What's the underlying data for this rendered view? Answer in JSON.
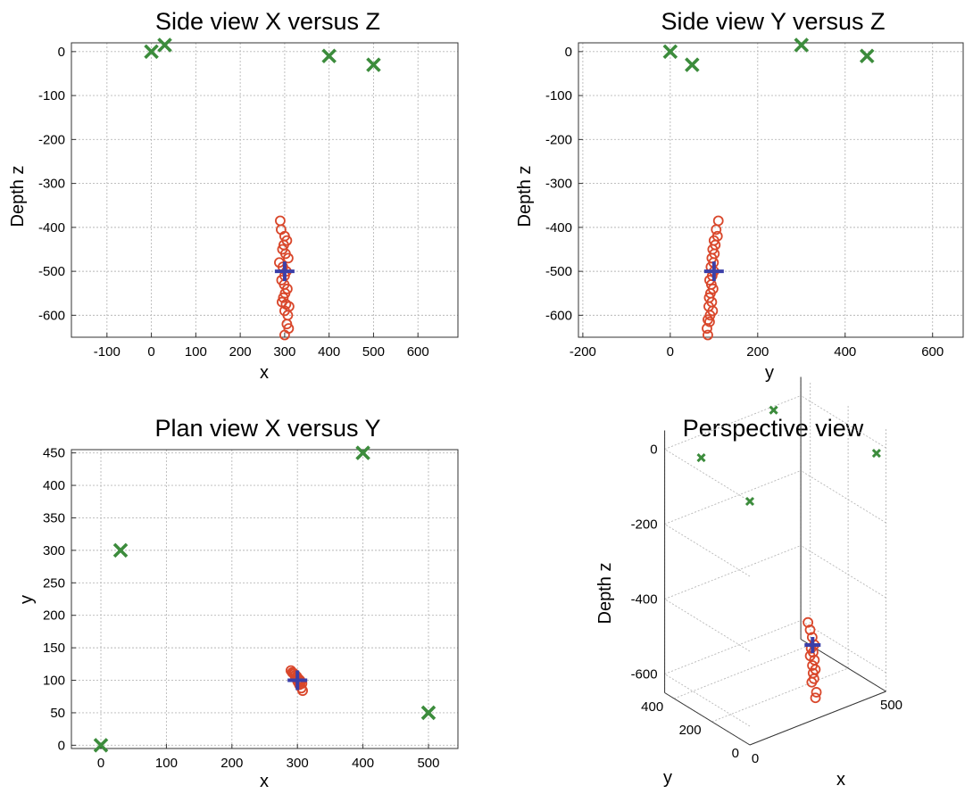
{
  "colors": {
    "sensor": "#3c8c3c",
    "event": "#d9472b",
    "centroid": "#3b3fa8"
  },
  "chart_data": [
    {
      "type": "scatter",
      "title": "Side view X versus Z",
      "xlabel": "x",
      "ylabel": "Depth z",
      "xlim": [
        -180,
        690
      ],
      "ylim": [
        -650,
        20
      ],
      "xticks": [
        -100,
        0,
        100,
        200,
        300,
        400,
        500,
        600
      ],
      "yticks": [
        0,
        -100,
        -200,
        -300,
        -400,
        -500,
        -600
      ],
      "grid": true,
      "series": [
        {
          "marker": "x",
          "color": "sensor",
          "x": [
            0,
            30,
            400,
            500
          ],
          "y": [
            0,
            15,
            -10,
            -30
          ]
        },
        {
          "marker": "o",
          "color": "event",
          "x": [
            290,
            292,
            300,
            305,
            298,
            295,
            302,
            308,
            288,
            296,
            304,
            300,
            293,
            299,
            306,
            301,
            297,
            303,
            310,
            294,
            300,
            307,
            305,
            309,
            300
          ],
          "y": [
            -385,
            -405,
            -420,
            -430,
            -440,
            -450,
            -460,
            -470,
            -480,
            -490,
            -500,
            -510,
            -520,
            -530,
            -540,
            -550,
            -560,
            -575,
            -580,
            -570,
            -590,
            -600,
            -620,
            -630,
            -645
          ]
        },
        {
          "marker": "+",
          "color": "centroid",
          "x": [
            300
          ],
          "y": [
            -500
          ]
        }
      ]
    },
    {
      "type": "scatter",
      "title": "Side view Y versus Z",
      "xlabel": "y",
      "ylabel": "Depth z",
      "xlim": [
        -210,
        670
      ],
      "ylim": [
        -650,
        20
      ],
      "xticks": [
        -200,
        0,
        200,
        400,
        600
      ],
      "yticks": [
        0,
        -100,
        -200,
        -300,
        -400,
        -500,
        -600
      ],
      "grid": true,
      "series": [
        {
          "marker": "x",
          "color": "sensor",
          "x": [
            0,
            50,
            300,
            450
          ],
          "y": [
            0,
            -30,
            15,
            -10
          ]
        },
        {
          "marker": "o",
          "color": "event",
          "x": [
            110,
            105,
            108,
            100,
            103,
            97,
            101,
            95,
            99,
            93,
            100,
            96,
            90,
            94,
            98,
            92,
            89,
            95,
            88,
            97,
            91,
            86,
            90,
            84,
            86
          ],
          "y": [
            -385,
            -405,
            -420,
            -430,
            -440,
            -450,
            -460,
            -470,
            -480,
            -490,
            -500,
            -510,
            -520,
            -530,
            -540,
            -550,
            -560,
            -570,
            -580,
            -590,
            -600,
            -610,
            -615,
            -630,
            -645
          ]
        },
        {
          "marker": "+",
          "color": "centroid",
          "x": [
            100
          ],
          "y": [
            -500
          ]
        }
      ]
    },
    {
      "type": "scatter",
      "title": "Plan view X versus Y",
      "xlabel": "x",
      "ylabel": "y",
      "xlim": [
        -45,
        545
      ],
      "ylim": [
        -5,
        455
      ],
      "xticks": [
        0,
        100,
        200,
        300,
        400,
        500
      ],
      "yticks": [
        450,
        400,
        350,
        300,
        250,
        200,
        150,
        100,
        50,
        0
      ],
      "grid": true,
      "series": [
        {
          "marker": "x",
          "color": "sensor",
          "x": [
            0,
            30,
            400,
            500
          ],
          "y": [
            0,
            300,
            450,
            50
          ]
        },
        {
          "marker": "o",
          "color": "event",
          "x": [
            290,
            292,
            295,
            297,
            299,
            300,
            302,
            304,
            305,
            307,
            301,
            298,
            296,
            303,
            306,
            294,
            300,
            308
          ],
          "y": [
            115,
            112,
            110,
            108,
            106,
            104,
            102,
            100,
            98,
            95,
            97,
            103,
            107,
            93,
            88,
            111,
            99,
            84
          ]
        },
        {
          "marker": "+",
          "color": "centroid",
          "x": [
            300
          ],
          "y": [
            100
          ]
        }
      ]
    },
    {
      "type": "scatter",
      "title": "Perspective view",
      "xlabel": "x",
      "ylabel": "y",
      "zlabel": "Depth z",
      "zticks": [
        0,
        -200,
        -400,
        -600
      ],
      "yticks": [
        400,
        200,
        0
      ],
      "xticks": [
        0,
        500
      ],
      "grid": true,
      "series": [
        {
          "marker": "x",
          "color": "sensor",
          "x": [
            0,
            30,
            400,
            500
          ],
          "y": [
            0,
            300,
            450,
            50
          ],
          "z": [
            0,
            15,
            -10,
            -30
          ]
        },
        {
          "marker": "o",
          "color": "event",
          "x": [
            290,
            295,
            300,
            305,
            298,
            302,
            296,
            304,
            300,
            306,
            301,
            303,
            299,
            307,
            305
          ],
          "y": [
            110,
            106,
            102,
            98,
            105,
            100,
            107,
            96,
            101,
            94,
            99,
            97,
            103,
            90,
            92
          ],
          "z": [
            -440,
            -460,
            -480,
            -500,
            -510,
            -520,
            -530,
            -540,
            -555,
            -565,
            -575,
            -590,
            -600,
            -625,
            -640
          ]
        },
        {
          "marker": "+",
          "color": "centroid",
          "x": [
            300
          ],
          "y": [
            100
          ],
          "z": [
            -500
          ]
        }
      ]
    }
  ]
}
